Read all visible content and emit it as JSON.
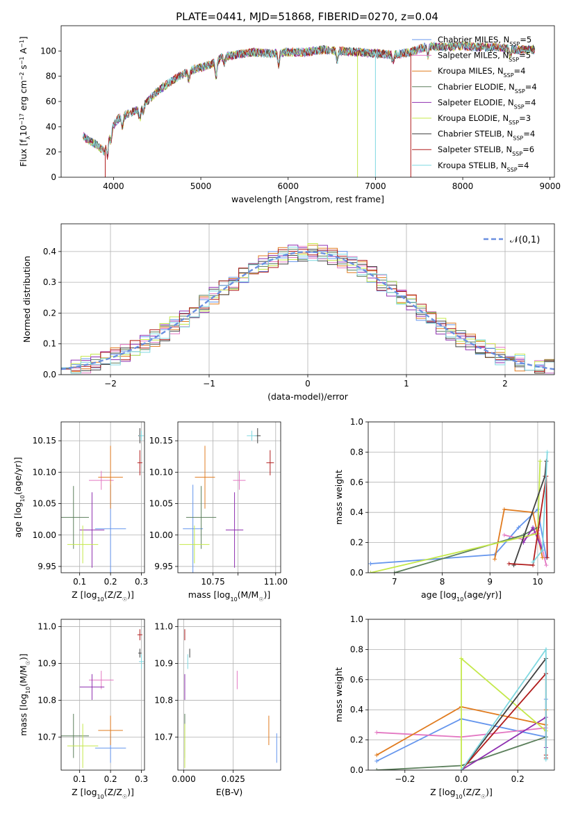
{
  "figure_title": "PLATE=0441, MJD=51868, FIBERID=0270, z=0.04",
  "colors": {
    "Chabrier MILES": "#6495ed",
    "Salpeter MILES": "#e377c2",
    "Kroupa MILES": "#e07b1f",
    "Chabrier ELODIE": "#5b7f5b",
    "Salpeter ELODIE": "#8e2fb0",
    "Kroupa ELODIE": "#c4e84a",
    "Chabrier STELIB": "#404040",
    "Salpeter STELIB": "#b01c1c",
    "Kroupa STELIB": "#7fd8e0"
  },
  "chart_data": [
    {
      "id": "spectrum",
      "type": "line",
      "title": "PLATE=0441, MJD=51868, FIBERID=0270, z=0.04",
      "xlabel": "wavelength [Angstrom, rest frame]",
      "ylabel": "Flux [fλ10⁻¹⁷ erg cm⁻² s⁻¹ A⁻¹]",
      "xlim": [
        3400,
        9050
      ],
      "ylim": [
        0,
        120
      ],
      "xticks": [
        4000,
        5000,
        6000,
        7000,
        8000,
        9000
      ],
      "yticks": [
        0,
        20,
        40,
        60,
        80,
        100
      ],
      "grid": false,
      "legend_position": "right",
      "legend": [
        {
          "label": "Chabrier MILES, N",
          "sub": "SSP",
          "tail": "=5"
        },
        {
          "label": "Salpeter MILES, N",
          "sub": "SSP",
          "tail": "=5"
        },
        {
          "label": "Kroupa MILES, N",
          "sub": "SSP",
          "tail": "=4"
        },
        {
          "label": "Chabrier ELODIE, N",
          "sub": "SSP",
          "tail": "=4"
        },
        {
          "label": "Salpeter ELODIE, N",
          "sub": "SSP",
          "tail": "=4"
        },
        {
          "label": "Kroupa ELODIE, N",
          "sub": "SSP",
          "tail": "=3"
        },
        {
          "label": "Chabrier STELIB, N",
          "sub": "SSP",
          "tail": "=4"
        },
        {
          "label": "Salpeter STELIB, N",
          "sub": "SSP",
          "tail": "=6"
        },
        {
          "label": "Kroupa STELIB, N",
          "sub": "SSP",
          "tail": "=4"
        }
      ],
      "continuum": [
        [
          3650,
          33
        ],
        [
          3700,
          30
        ],
        [
          3800,
          26
        ],
        [
          3900,
          20
        ],
        [
          3950,
          36
        ],
        [
          4050,
          46
        ],
        [
          4150,
          50
        ],
        [
          4300,
          54
        ],
        [
          4500,
          68
        ],
        [
          4700,
          78
        ],
        [
          4900,
          85
        ],
        [
          5100,
          89
        ],
        [
          5250,
          95
        ],
        [
          5400,
          97
        ],
        [
          5600,
          99
        ],
        [
          5800,
          98
        ],
        [
          6000,
          99
        ],
        [
          6200,
          99
        ],
        [
          6400,
          101
        ],
        [
          6600,
          100
        ],
        [
          6800,
          99
        ],
        [
          7000,
          98
        ],
        [
          7200,
          97
        ],
        [
          7400,
          99
        ],
        [
          7600,
          104
        ],
        [
          7800,
          103
        ],
        [
          8000,
          104
        ],
        [
          8200,
          103
        ],
        [
          8400,
          103
        ],
        [
          8600,
          101
        ],
        [
          8800,
          101
        ]
      ],
      "features": [
        [
          3933,
          -14
        ],
        [
          3968,
          -10
        ],
        [
          4102,
          -8
        ],
        [
          4300,
          -9
        ],
        [
          4340,
          -6
        ],
        [
          4861,
          -6
        ],
        [
          5175,
          -13
        ],
        [
          5270,
          -5
        ],
        [
          5890,
          -10
        ],
        [
          6563,
          -8
        ],
        [
          7200,
          -6
        ],
        [
          7600,
          -8
        ],
        [
          8542,
          -6
        ]
      ],
      "spikes": [
        {
          "x": 3905,
          "to": 0,
          "series": "Salpeter STELIB"
        },
        {
          "x": 6795,
          "to": 0,
          "series": "Kroupa ELODIE"
        },
        {
          "x": 7000,
          "to": 0,
          "series": "Kroupa STELIB"
        },
        {
          "x": 7405,
          "to": 0,
          "series": "Salpeter STELIB"
        }
      ]
    },
    {
      "id": "residuals",
      "type": "histogram",
      "xlabel": "(data-model)/error",
      "ylabel": "Normed distribution",
      "xlim": [
        -2.5,
        2.5
      ],
      "ylim": [
        0,
        0.49
      ],
      "xticks": [
        -2,
        -1,
        0,
        1,
        2
      ],
      "yticks": [
        0.0,
        0.1,
        0.2,
        0.3,
        0.4
      ],
      "grid": true,
      "bin_width": 0.1,
      "legend": [
        "𝒩(0,1)"
      ],
      "legend_position": "top-right"
    },
    {
      "id": "age_vs_Z",
      "type": "errorbar",
      "xlabel": "Z [log₁₀(Z/Z☉)]",
      "ylabel": "age  [log₁₀(age/yr)]",
      "xlim": [
        0.04,
        0.31
      ],
      "ylim": [
        9.94,
        10.18
      ],
      "xticks": [
        0.1,
        0.2,
        0.3
      ],
      "yticks": [
        9.95,
        10.0,
        10.05,
        10.1,
        10.15
      ],
      "grid": true
    },
    {
      "id": "age_vs_mass",
      "type": "errorbar",
      "xlabel": "mass [log₁₀(M/M☉)]",
      "xlim": [
        10.61,
        11.02
      ],
      "ylim": [
        9.94,
        10.18
      ],
      "xticks": [
        10.75,
        10.85,
        11.0
      ],
      "xticklabels": [
        "10.75",
        "",
        "11.00"
      ],
      "yticks": [
        9.95,
        10.0,
        10.05,
        10.1,
        10.15
      ],
      "grid": true
    },
    {
      "id": "weight_vs_age",
      "type": "line",
      "xlabel": "age  [log₁₀(age/yr)]",
      "ylabel": "mass weight",
      "xlim": [
        6.45,
        10.35
      ],
      "ylim": [
        0,
        1
      ],
      "xticks": [
        7,
        8,
        9,
        10
      ],
      "yticks": [
        0.0,
        0.2,
        0.4,
        0.6,
        0.8,
        1.0
      ],
      "grid": true
    },
    {
      "id": "mass_vs_Z",
      "type": "errorbar",
      "xlabel": "Z [log₁₀(Z/Z☉)]",
      "ylabel": "mass [log₁₀(M/M☉)]",
      "xlim": [
        0.04,
        0.31
      ],
      "ylim": [
        10.61,
        11.02
      ],
      "xticks": [
        0.1,
        0.2,
        0.3
      ],
      "yticks": [
        10.7,
        10.8,
        10.9,
        11.0
      ],
      "grid": true
    },
    {
      "id": "mass_vs_ebv",
      "type": "errorbar",
      "xlabel": "E(B-V)",
      "xlim": [
        -0.003,
        0.049
      ],
      "ylim": [
        10.61,
        11.02
      ],
      "xticks": [
        0.0,
        0.025
      ],
      "xticklabels": [
        "0.000",
        "0.025"
      ],
      "yticks": [
        10.7,
        10.8,
        10.9,
        11.0
      ],
      "grid": true
    },
    {
      "id": "weight_vs_Z",
      "type": "line",
      "xlabel": "Z [log₁₀(Z/Z☉)]",
      "ylabel": "mass weight",
      "xlim": [
        -0.33,
        0.33
      ],
      "ylim": [
        0,
        1
      ],
      "xticks": [
        -0.2,
        0.0,
        0.2
      ],
      "yticks": [
        0.0,
        0.2,
        0.4,
        0.6,
        0.8,
        1.0
      ],
      "grid": true
    }
  ],
  "models": [
    {
      "name": "Chabrier MILES",
      "Z": 0.2,
      "Zerr": 0.05,
      "age": 10.01,
      "ageErr": 0.07,
      "mass": 10.67,
      "massErr": 0.04,
      "ebv": 0.047,
      "ebvErr": 0.055,
      "ages": [
        6.5,
        9.1,
        9.6,
        10.0,
        10.18
      ],
      "wAge": [
        0.06,
        0.12,
        0.3,
        0.42,
        0.1
      ],
      "Zs": [
        -0.3,
        0.0,
        0.3,
        0.3
      ],
      "wZ": [
        0.06,
        0.34,
        0.22,
        0.47
      ]
    },
    {
      "name": "Salpeter MILES",
      "Z": 0.17,
      "Zerr": 0.04,
      "age": 10.087,
      "ageErr": 0.015,
      "mass": 10.855,
      "massErr": 0.025,
      "ebv": 0.027,
      "ebvErr": 0.05,
      "ages": [
        9.3,
        9.7,
        10.0,
        10.18
      ],
      "wAge": [
        0.25,
        0.22,
        0.28,
        0.05
      ],
      "Zs": [
        -0.3,
        0.0,
        0.3
      ],
      "wZ": [
        0.25,
        0.22,
        0.28
      ]
    },
    {
      "name": "Kroupa MILES",
      "Z": 0.2,
      "Zerr": 0.04,
      "age": 10.092,
      "ageErr": 0.05,
      "mass": 10.718,
      "massErr": 0.04,
      "ebv": 0.043,
      "ebvErr": 0.045,
      "ages": [
        9.1,
        9.3,
        9.9,
        10.1
      ],
      "wAge": [
        0.09,
        0.42,
        0.4,
        0.1
      ],
      "Zs": [
        -0.3,
        0.0,
        0.3,
        0.3
      ],
      "wZ": [
        0.1,
        0.42,
        0.3,
        0.4
      ]
    },
    {
      "name": "Chabrier ELODIE",
      "Z": 0.08,
      "Zerr": 0.05,
      "age": 10.028,
      "ageErr": 0.05,
      "mass": 10.703,
      "massErr": 0.06,
      "ebv": 0.0005,
      "ebvErr": 0.04,
      "ages": [
        7.0,
        9.7,
        10.0
      ],
      "wAge": [
        0.0,
        0.25,
        0.3
      ],
      "Zs": [
        -0.3,
        0.0,
        0.3
      ],
      "wZ": [
        0.0,
        0.03,
        0.22
      ]
    },
    {
      "name": "Salpeter ELODIE",
      "Z": 0.14,
      "Zerr": 0.04,
      "age": 10.008,
      "ageErr": 0.06,
      "mass": 10.836,
      "massErr": 0.035,
      "ebv": 0.0005,
      "ebvErr": 0.05,
      "ages": [
        9.7,
        9.9,
        10.1
      ],
      "wAge": [
        0.2,
        0.3,
        0.15
      ],
      "Zs": [
        0.0,
        0.3,
        0.3
      ],
      "wZ": [
        0.0,
        0.35,
        0.15
      ]
    },
    {
      "name": "Kroupa ELODIE",
      "Z": 0.11,
      "Zerr": 0.05,
      "age": 9.985,
      "ageErr": 0.03,
      "mass": 10.676,
      "massErr": 0.06,
      "ebv": 0.0005,
      "ebvErr": 0.06,
      "ages": [
        6.5,
        10.0,
        10.05
      ],
      "wAge": [
        0.0,
        0.26,
        0.74
      ],
      "Zs": [
        0.0,
        0.0,
        0.3
      ],
      "wZ": [
        0.0,
        0.74,
        0.26
      ]
    },
    {
      "name": "Chabrier STELIB",
      "Z": 0.295,
      "Zerr": 0.005,
      "age": 10.158,
      "ageErr": 0.012,
      "mass": 10.928,
      "massErr": 0.012,
      "ebv": 0.003,
      "ebvErr": 0.013,
      "ages": [
        9.5,
        10.15,
        10.18
      ],
      "wAge": [
        0.05,
        0.64,
        0.74
      ],
      "Zs": [
        0.0,
        0.3,
        0.3
      ],
      "wZ": [
        0.0,
        0.74,
        0.64
      ]
    },
    {
      "name": "Salpeter STELIB",
      "Z": 0.295,
      "Zerr": 0.008,
      "age": 10.115,
      "ageErr": 0.02,
      "mass": 10.978,
      "massErr": 0.015,
      "ebv": 0.0005,
      "ebvErr": 0.02,
      "ages": [
        9.4,
        9.9,
        10.18,
        10.2
      ],
      "wAge": [
        0.06,
        0.05,
        0.64,
        0.1
      ],
      "Zs": [
        0.0,
        0.3,
        0.3,
        0.3
      ],
      "wZ": [
        0.0,
        0.64,
        0.1,
        0.08
      ]
    },
    {
      "name": "Kroupa STELIB",
      "Z": 0.3,
      "Zerr": 0.008,
      "age": 10.158,
      "ageErr": 0.008,
      "mass": 10.905,
      "massErr": 0.02,
      "ebv": 0.002,
      "ebvErr": 0.02,
      "ages": [
        9.9,
        10.1,
        10.2
      ],
      "wAge": [
        0.07,
        0.15,
        0.8
      ],
      "Zs": [
        0.0,
        0.3,
        0.3
      ],
      "wZ": [
        0.0,
        0.8,
        0.07
      ]
    }
  ]
}
